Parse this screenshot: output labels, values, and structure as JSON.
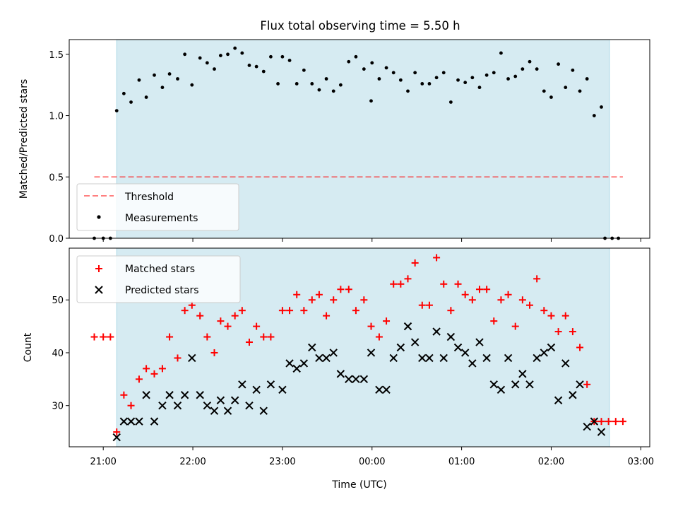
{
  "chart_data": {
    "type": "scatter",
    "title": "Flux total observing time = 5.50 h",
    "xlabel": "Time (UTC)",
    "x_unit": "hours after 21:00 UTC",
    "x_range": [
      -0.38,
      6.1
    ],
    "x_ticks": [
      {
        "value": 0,
        "label": "21:00"
      },
      {
        "value": 1,
        "label": "22:00"
      },
      {
        "value": 2,
        "label": "23:00"
      },
      {
        "value": 3,
        "label": "00:00"
      },
      {
        "value": 4,
        "label": "01:00"
      },
      {
        "value": 5,
        "label": "02:00"
      },
      {
        "value": 6,
        "label": "03:00"
      }
    ],
    "shaded_interval": [
      0.15,
      5.65
    ],
    "colors": {
      "shade": "#ADD8E6",
      "threshold": "#FF0000",
      "measurements": "#000000",
      "matched": "#FF0000",
      "predicted": "#000000"
    },
    "top": {
      "ylabel": "Matched/Predicted stars",
      "ylim": [
        0,
        1.62
      ],
      "y_ticks": [
        {
          "value": 0,
          "label": "0.0"
        },
        {
          "value": 0.5,
          "label": "0.5"
        },
        {
          "value": 1.0,
          "label": "1.0"
        },
        {
          "value": 1.5,
          "label": "1.5"
        }
      ],
      "threshold": {
        "name": "Threshold",
        "y": 0.5,
        "x_range": [
          -0.1,
          5.8
        ]
      },
      "measurements": {
        "name": "Measurements",
        "points": [
          [
            -0.1,
            0
          ],
          [
            0.0,
            0
          ],
          [
            0.08,
            0
          ],
          [
            0.15,
            1.04
          ],
          [
            0.23,
            1.18
          ],
          [
            0.31,
            1.11
          ],
          [
            0.4,
            1.29
          ],
          [
            0.48,
            1.15
          ],
          [
            0.57,
            1.33
          ],
          [
            0.66,
            1.23
          ],
          [
            0.74,
            1.34
          ],
          [
            0.83,
            1.3
          ],
          [
            0.91,
            1.5
          ],
          [
            0.99,
            1.25
          ],
          [
            1.08,
            1.47
          ],
          [
            1.16,
            1.43
          ],
          [
            1.24,
            1.38
          ],
          [
            1.31,
            1.49
          ],
          [
            1.39,
            1.5
          ],
          [
            1.47,
            1.55
          ],
          [
            1.55,
            1.51
          ],
          [
            1.63,
            1.41
          ],
          [
            1.71,
            1.4
          ],
          [
            1.79,
            1.36
          ],
          [
            1.87,
            1.48
          ],
          [
            1.95,
            1.26
          ],
          [
            2.0,
            1.48
          ],
          [
            2.08,
            1.45
          ],
          [
            2.16,
            1.26
          ],
          [
            2.24,
            1.37
          ],
          [
            2.33,
            1.26
          ],
          [
            2.41,
            1.21
          ],
          [
            2.49,
            1.3
          ],
          [
            2.57,
            1.2
          ],
          [
            2.65,
            1.25
          ],
          [
            2.74,
            1.44
          ],
          [
            2.82,
            1.48
          ],
          [
            2.91,
            1.38
          ],
          [
            3.0,
            1.43
          ],
          [
            2.99,
            1.12
          ],
          [
            3.08,
            1.3
          ],
          [
            3.16,
            1.39
          ],
          [
            3.24,
            1.35
          ],
          [
            3.32,
            1.29
          ],
          [
            3.4,
            1.2
          ],
          [
            3.48,
            1.35
          ],
          [
            3.56,
            1.26
          ],
          [
            3.64,
            1.26
          ],
          [
            3.72,
            1.31
          ],
          [
            3.8,
            1.35
          ],
          [
            3.88,
            1.11
          ],
          [
            3.96,
            1.29
          ],
          [
            4.04,
            1.27
          ],
          [
            4.12,
            1.31
          ],
          [
            4.2,
            1.23
          ],
          [
            4.28,
            1.33
          ],
          [
            4.36,
            1.35
          ],
          [
            4.44,
            1.51
          ],
          [
            4.52,
            1.3
          ],
          [
            4.6,
            1.32
          ],
          [
            4.68,
            1.38
          ],
          [
            4.76,
            1.44
          ],
          [
            4.84,
            1.38
          ],
          [
            4.92,
            1.2
          ],
          [
            5.0,
            1.15
          ],
          [
            5.08,
            1.42
          ],
          [
            5.16,
            1.23
          ],
          [
            5.24,
            1.37
          ],
          [
            5.32,
            1.2
          ],
          [
            5.4,
            1.3
          ],
          [
            5.48,
            1.0
          ],
          [
            5.56,
            1.07
          ],
          [
            5.6,
            0
          ],
          [
            5.68,
            0
          ],
          [
            5.75,
            0
          ]
        ]
      }
    },
    "bottom": {
      "ylabel": "Count",
      "ylim": [
        22.2,
        59.8
      ],
      "y_ticks": [
        {
          "value": 30,
          "label": "30"
        },
        {
          "value": 40,
          "label": "40"
        },
        {
          "value": 50,
          "label": "50"
        }
      ],
      "matched": {
        "name": "Matched stars",
        "points": [
          [
            -0.1,
            43
          ],
          [
            0.0,
            43
          ],
          [
            0.08,
            43
          ],
          [
            0.15,
            25
          ],
          [
            0.23,
            32
          ],
          [
            0.31,
            30
          ],
          [
            0.4,
            35
          ],
          [
            0.48,
            37
          ],
          [
            0.57,
            36
          ],
          [
            0.66,
            37
          ],
          [
            0.74,
            43
          ],
          [
            0.83,
            39
          ],
          [
            0.91,
            48
          ],
          [
            0.99,
            49
          ],
          [
            1.08,
            47
          ],
          [
            1.16,
            43
          ],
          [
            1.24,
            40
          ],
          [
            1.31,
            46
          ],
          [
            1.39,
            45
          ],
          [
            1.47,
            47
          ],
          [
            1.55,
            48
          ],
          [
            1.63,
            42
          ],
          [
            1.71,
            45
          ],
          [
            1.79,
            43
          ],
          [
            1.87,
            43
          ],
          [
            2.0,
            48
          ],
          [
            2.08,
            48
          ],
          [
            2.16,
            51
          ],
          [
            2.24,
            48
          ],
          [
            2.33,
            50
          ],
          [
            2.41,
            51
          ],
          [
            2.49,
            47
          ],
          [
            2.57,
            50
          ],
          [
            2.65,
            52
          ],
          [
            2.74,
            52
          ],
          [
            2.82,
            48
          ],
          [
            2.91,
            50
          ],
          [
            2.99,
            45
          ],
          [
            3.08,
            43
          ],
          [
            3.16,
            46
          ],
          [
            3.24,
            53
          ],
          [
            3.32,
            53
          ],
          [
            3.4,
            54
          ],
          [
            3.48,
            57
          ],
          [
            3.56,
            49
          ],
          [
            3.64,
            49
          ],
          [
            3.72,
            58
          ],
          [
            3.8,
            53
          ],
          [
            3.88,
            48
          ],
          [
            3.96,
            53
          ],
          [
            4.04,
            51
          ],
          [
            4.12,
            50
          ],
          [
            4.2,
            52
          ],
          [
            4.28,
            52
          ],
          [
            4.36,
            46
          ],
          [
            4.44,
            50
          ],
          [
            4.52,
            51
          ],
          [
            4.6,
            45
          ],
          [
            4.68,
            50
          ],
          [
            4.76,
            49
          ],
          [
            4.84,
            54
          ],
          [
            4.92,
            48
          ],
          [
            5.0,
            47
          ],
          [
            5.08,
            44
          ],
          [
            5.16,
            47
          ],
          [
            5.24,
            44
          ],
          [
            5.32,
            41
          ],
          [
            5.4,
            34
          ],
          [
            5.48,
            27
          ],
          [
            5.56,
            27
          ],
          [
            5.64,
            27
          ],
          [
            5.72,
            27
          ],
          [
            5.8,
            27
          ]
        ]
      },
      "predicted": {
        "name": "Predicted stars",
        "points": [
          [
            0.15,
            24
          ],
          [
            0.23,
            27
          ],
          [
            0.31,
            27
          ],
          [
            0.4,
            27
          ],
          [
            0.48,
            32
          ],
          [
            0.57,
            27
          ],
          [
            0.66,
            30
          ],
          [
            0.74,
            32
          ],
          [
            0.83,
            30
          ],
          [
            0.91,
            32
          ],
          [
            0.99,
            39
          ],
          [
            1.08,
            32
          ],
          [
            1.16,
            30
          ],
          [
            1.24,
            29
          ],
          [
            1.31,
            31
          ],
          [
            1.39,
            29
          ],
          [
            1.47,
            31
          ],
          [
            1.55,
            34
          ],
          [
            1.63,
            30
          ],
          [
            1.71,
            33
          ],
          [
            1.79,
            29
          ],
          [
            1.87,
            34
          ],
          [
            2.0,
            33
          ],
          [
            2.08,
            38
          ],
          [
            2.16,
            37
          ],
          [
            2.24,
            38
          ],
          [
            2.33,
            41
          ],
          [
            2.41,
            39
          ],
          [
            2.49,
            39
          ],
          [
            2.57,
            40
          ],
          [
            2.65,
            36
          ],
          [
            2.74,
            35
          ],
          [
            2.82,
            35
          ],
          [
            2.91,
            35
          ],
          [
            2.99,
            40
          ],
          [
            3.08,
            33
          ],
          [
            3.16,
            33
          ],
          [
            3.24,
            39
          ],
          [
            3.32,
            41
          ],
          [
            3.4,
            45
          ],
          [
            3.48,
            42
          ],
          [
            3.56,
            39
          ],
          [
            3.64,
            39
          ],
          [
            3.72,
            44
          ],
          [
            3.8,
            39
          ],
          [
            3.88,
            43
          ],
          [
            3.96,
            41
          ],
          [
            4.04,
            40
          ],
          [
            4.12,
            38
          ],
          [
            4.2,
            42
          ],
          [
            4.28,
            39
          ],
          [
            4.36,
            34
          ],
          [
            4.44,
            33
          ],
          [
            4.52,
            39
          ],
          [
            4.6,
            34
          ],
          [
            4.68,
            36
          ],
          [
            4.76,
            34
          ],
          [
            4.84,
            39
          ],
          [
            4.92,
            40
          ],
          [
            5.0,
            41
          ],
          [
            5.08,
            31
          ],
          [
            5.16,
            38
          ],
          [
            5.24,
            32
          ],
          [
            5.32,
            34
          ],
          [
            5.4,
            26
          ],
          [
            5.48,
            27
          ],
          [
            5.56,
            25
          ]
        ]
      }
    }
  }
}
